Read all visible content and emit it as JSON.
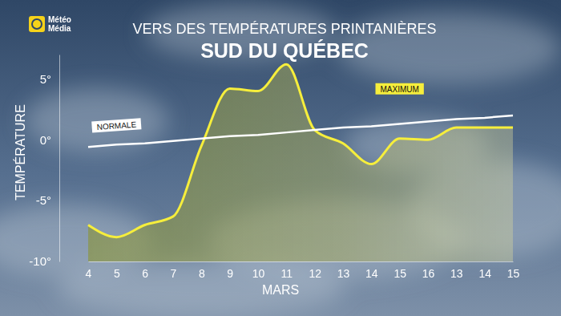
{
  "chart_data": {
    "type": "line",
    "title": "VERS DES TEMPÉRATURES PRINTANIÈRES",
    "subtitle": "SUD DU QUÉBEC",
    "annotations": [
      "Météo",
      "Média"
    ],
    "x_label": "MARS",
    "y_label": "TEMPÉRATURE",
    "categories": [
      "4",
      "5",
      "6",
      "7",
      "8",
      "9",
      "10",
      "11",
      "12",
      "13",
      "14",
      "15",
      "16",
      "13",
      "14",
      "15"
    ],
    "series": [
      {
        "name": "MAXIMUM",
        "type": "area",
        "color": "#f6ee3c",
        "values": [
          -7,
          -8,
          -7,
          -6.3,
          -0.5,
          4.2,
          4,
          6.2,
          0.8,
          -0.3,
          -2,
          0.1,
          0,
          1,
          1,
          1
        ]
      },
      {
        "name": "NORMALE",
        "type": "line",
        "color": "#ffffff",
        "values": [
          -0.6,
          -0.4,
          -0.3,
          -0.1,
          0.1,
          0.3,
          0.4,
          0.6,
          0.8,
          1.0,
          1.1,
          1.3,
          1.5,
          1.7,
          1.8,
          2.0
        ]
      }
    ],
    "ylim": [
      -10,
      7
    ],
    "yticks": [
      {
        "value": -10,
        "label": "-10°"
      },
      {
        "value": -5,
        "label": "-5°"
      },
      {
        "value": 0,
        "label": "0°"
      },
      {
        "value": 5,
        "label": "5°"
      }
    ],
    "grid": false
  }
}
